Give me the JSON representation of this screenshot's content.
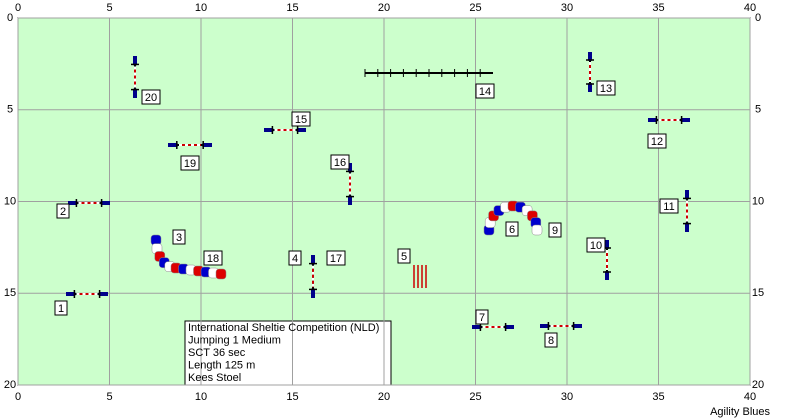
{
  "axes": {
    "xlim": [
      0,
      40
    ],
    "ylim": [
      0,
      20
    ],
    "xticks": [
      0,
      5,
      10,
      15,
      20,
      25,
      30,
      35,
      40
    ],
    "yticks": [
      0,
      5,
      10,
      15,
      20
    ],
    "grid": true
  },
  "obstacles": [
    {
      "label": "1"
    },
    {
      "label": "2"
    },
    {
      "label": "3"
    },
    {
      "label": "4"
    },
    {
      "label": "5"
    },
    {
      "label": "6"
    },
    {
      "label": "7"
    },
    {
      "label": "8"
    },
    {
      "label": "9"
    },
    {
      "label": "10"
    },
    {
      "label": "11"
    },
    {
      "label": "12"
    },
    {
      "label": "13"
    },
    {
      "label": "14"
    },
    {
      "label": "15"
    },
    {
      "label": "16"
    },
    {
      "label": "17"
    },
    {
      "label": "18"
    },
    {
      "label": "19"
    },
    {
      "label": "20"
    }
  ],
  "info": [
    "International Sheltie Competition (NLD)",
    "Jumping 1 Medium",
    "SCT 36 sec",
    "Length 125 m",
    "Kees Stoel"
  ],
  "footer": "Agility Blues"
}
